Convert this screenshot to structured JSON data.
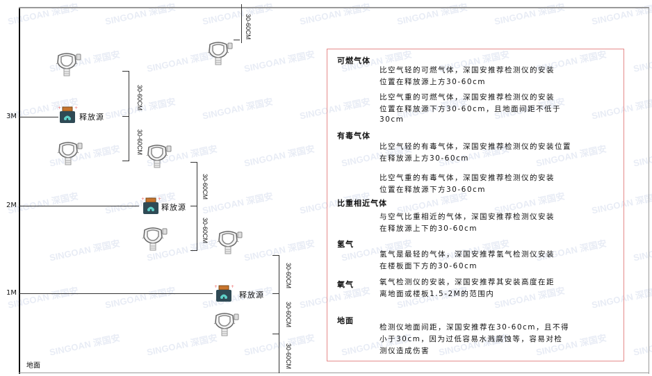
{
  "levels": {
    "m3": "3M",
    "m2": "2M",
    "m1": "1M",
    "ground": "地面"
  },
  "source_label": "释放源",
  "dimension_label": "30-60CM",
  "watermark": "SINGOAN 深国安",
  "colors": {
    "panel_border": "#e58a8a",
    "source_body": "#2f4a55",
    "source_cap": "#c8742c",
    "line": "#333333"
  },
  "panel": {
    "sections": [
      {
        "heading": "可燃气体",
        "paragraphs": [
          [
            "比空气轻的可燃气体，深国安推荐检测仪的安装",
            "位置在释放源上方30-60cm"
          ],
          [
            "比空气重的可燃气体，深国安推荐检测仪的安装",
            "位置在释放源下方30-60cm，且地面间距不低于",
            "30cm"
          ]
        ]
      },
      {
        "heading": "有毒气体",
        "paragraphs": [
          [
            "比空气轻的有毒气体，深国安推荐检测仪的安装位置",
            "在释放源上方30-60cm"
          ],
          [
            "比空气重的有毒气体，深国安推荐检测仪的安装",
            "位置在释放源下方30-60cm"
          ]
        ]
      },
      {
        "heading": "比重相近气体",
        "paragraphs": [
          [
            "与空气比重相近的气体，深国安推荐检测仪安装",
            "在释放源上下的30-60cm"
          ]
        ]
      },
      {
        "heading": "氢气",
        "paragraphs": [
          [
            "氢气是最轻的气体，深国安推荐氢气检测仪安装",
            "在楼板面下方的30-60cm"
          ]
        ]
      },
      {
        "heading": "氧气",
        "paragraphs": [
          [
            "氧气检测仪的安装，深国安推荐其安装高度在距",
            "离地面或楼板1.5-2M的范围内"
          ]
        ]
      },
      {
        "heading": "地面",
        "paragraphs": [
          [
            "检测仪地面间距，深国安推荐在30-60cm，且不得",
            "小于30cm，因为过低容易水溅腐蚀等，容易对检",
            "测仪造成伤害"
          ]
        ]
      }
    ]
  }
}
